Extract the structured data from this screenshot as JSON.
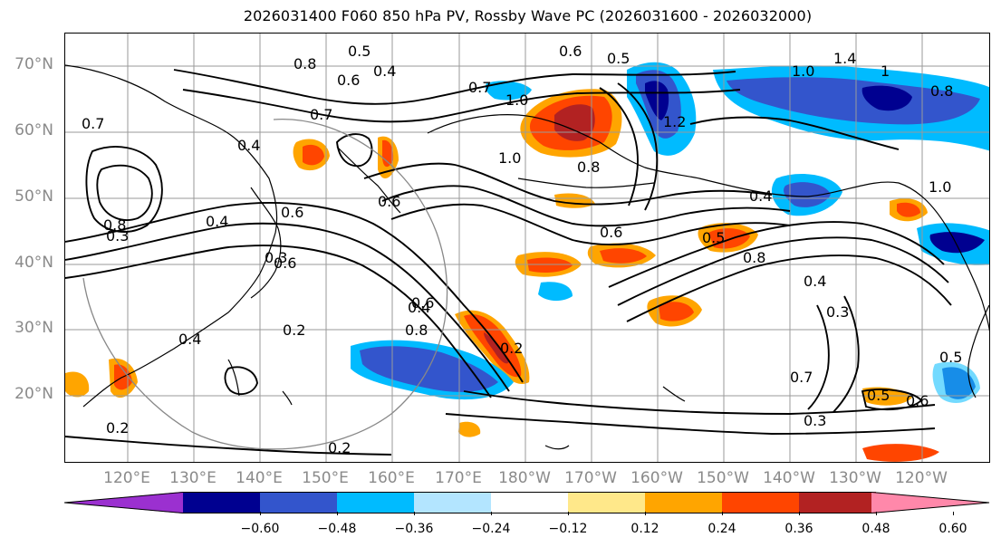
{
  "title": "2026031400 F060 850 hPa PV, Rossby Wave PC (2026031600 - 2026032000)",
  "lat_labels": [
    "70°N",
    "60°N",
    "50°N",
    "40°N",
    "30°N",
    "20°N"
  ],
  "lon_labels": [
    "120°E",
    "130°E",
    "140°E",
    "150°E",
    "160°E",
    "170°E",
    "180°W",
    "170°W",
    "160°W",
    "150°W",
    "140°W",
    "130°W",
    "120°W"
  ],
  "colorbar": {
    "ticks": [
      "−0.60",
      "−0.48",
      "−0.36",
      "−0.24",
      "−0.12",
      "0.12",
      "0.24",
      "0.36",
      "0.48",
      "0.60"
    ],
    "colors": [
      "#9b30d0",
      "#000090",
      "#3355cc",
      "#00bbff",
      "#b3e5ff",
      "#ffffff",
      "#ffe88a",
      "#ffa500",
      "#ff4500",
      "#b22222",
      "#ff88aa"
    ],
    "extend": "both"
  },
  "contour_labels": [
    {
      "text": "0.5"
    },
    {
      "text": "0.6"
    },
    {
      "text": "0.5"
    },
    {
      "text": "1.4"
    },
    {
      "text": "0.8"
    },
    {
      "text": "0.4"
    },
    {
      "text": "0.6"
    },
    {
      "text": "0.7"
    },
    {
      "text": "1.0"
    },
    {
      "text": "1.0"
    },
    {
      "text": "1"
    },
    {
      "text": "0.8"
    },
    {
      "text": "0.7"
    },
    {
      "text": "0.7"
    },
    {
      "text": "1.0"
    },
    {
      "text": "1.2"
    },
    {
      "text": "0.4"
    },
    {
      "text": "0.6"
    },
    {
      "text": "0.8"
    },
    {
      "text": "0.6"
    },
    {
      "text": "0.4"
    },
    {
      "text": "0.6"
    },
    {
      "text": "0.4"
    },
    {
      "text": "0.5"
    },
    {
      "text": "0.8"
    },
    {
      "text": "0.3"
    },
    {
      "text": "0.8"
    },
    {
      "text": "0.4"
    },
    {
      "text": "0.3"
    },
    {
      "text": "0.2"
    },
    {
      "text": "0.4"
    },
    {
      "text": "0.6"
    },
    {
      "text": "0.4"
    },
    {
      "text": "0.2"
    },
    {
      "text": "0.2"
    },
    {
      "text": "0.5"
    },
    {
      "text": "0.6"
    },
    {
      "text": "0.3"
    },
    {
      "text": "0.2"
    },
    {
      "text": "0.7"
    },
    {
      "text": "0.5"
    },
    {
      "text": "1.0"
    },
    {
      "text": "0.3"
    },
    {
      "text": "0.6"
    },
    {
      "text": "0.8"
    }
  ],
  "anomaly_blobs": [
    {
      "color": "#ff4500",
      "outer": "#ffa500"
    },
    {
      "color": "#b22222",
      "outer": "#ff4500"
    },
    {
      "color": "#000090",
      "outer": "#00bbff"
    },
    {
      "color": "#3355cc",
      "outer": "#00bbff"
    }
  ]
}
